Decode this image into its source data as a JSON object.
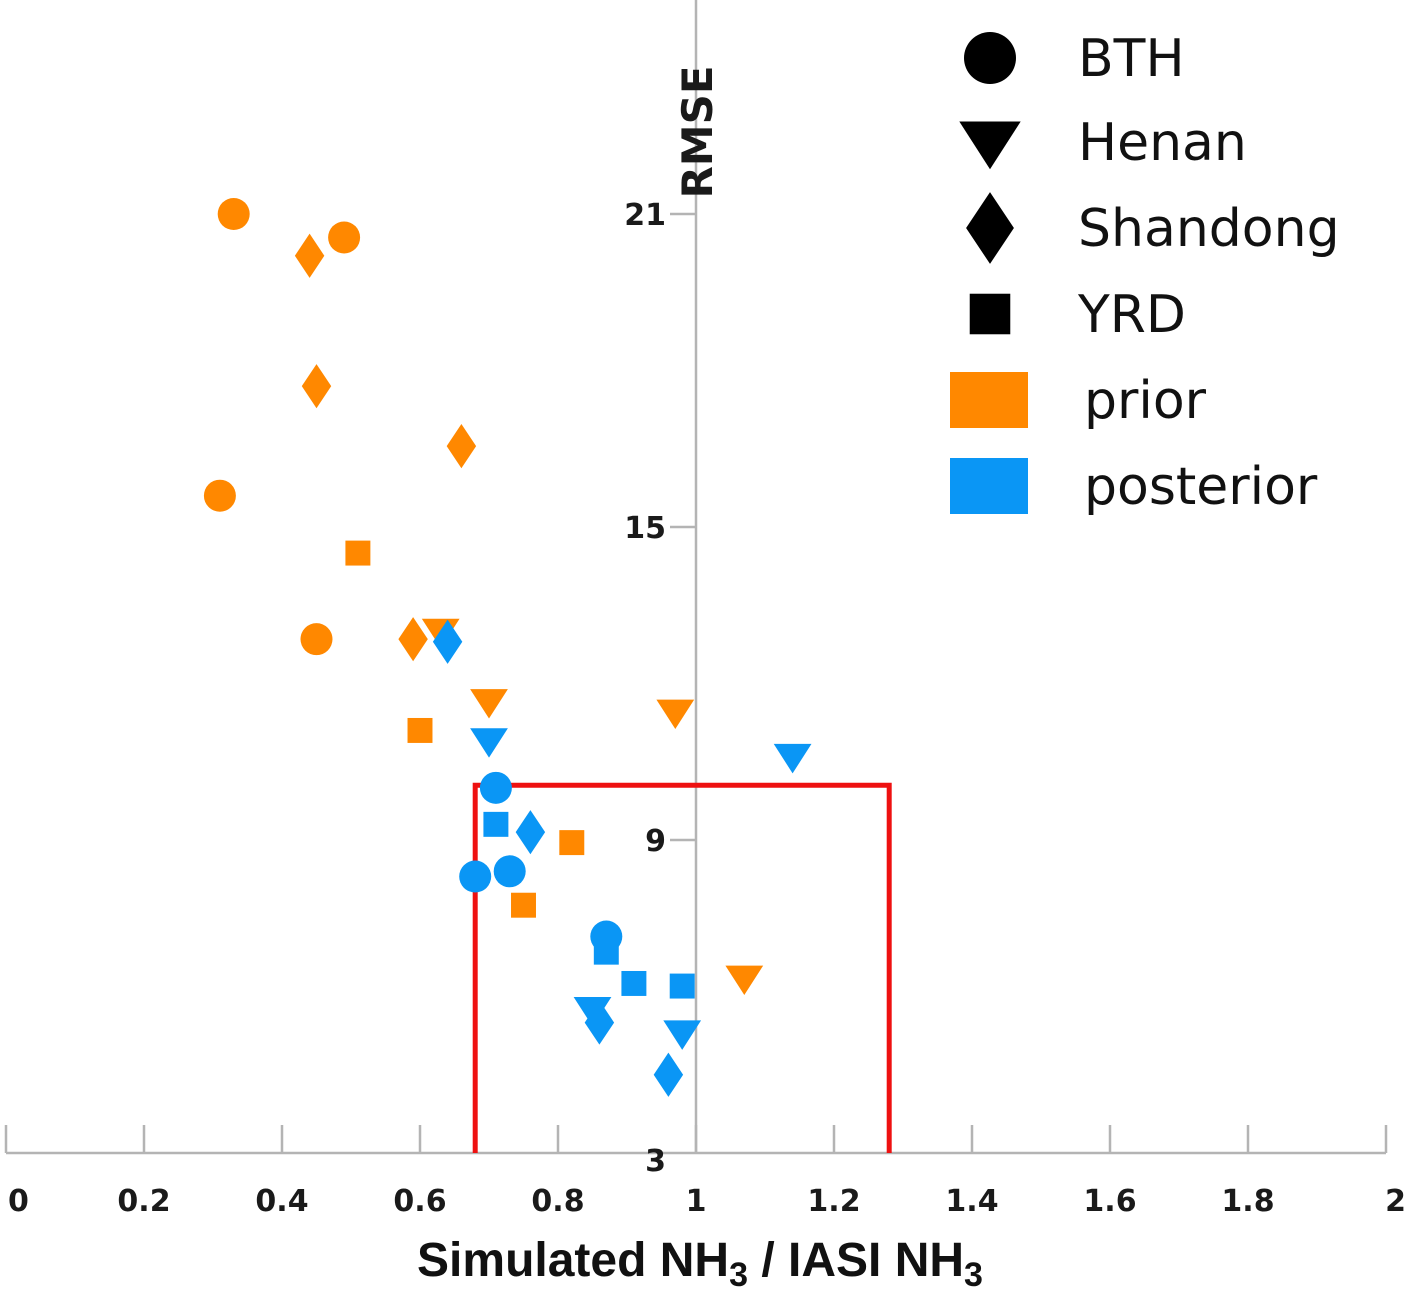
{
  "chart_data": {
    "type": "scatter",
    "xlabel_main": "Simulated NH",
    "xlabel_sub": "3",
    "xlabel_mid": " / IASI NH",
    "xlabel_sub2": "3",
    "ylabel": "RMSE",
    "xlim": [
      0,
      2
    ],
    "ylim": [
      3,
      21
    ],
    "x_ticks": [
      "0",
      "0.2",
      "0.4",
      "0.6",
      "0.8",
      "1",
      "1.2",
      "1.4",
      "1.6",
      "1.8",
      "2"
    ],
    "y_ticks": [
      "3",
      "9",
      "15",
      "21"
    ],
    "highlight_box": {
      "x": [
        0.68,
        1.28
      ],
      "y": [
        3,
        10.05
      ],
      "color": "#ee1111"
    },
    "colors": {
      "prior": "#ff8800",
      "posterior": "#0a96f5",
      "axis": "#b4b4b4"
    },
    "legend": {
      "position": "top-right",
      "shapes": [
        {
          "label": "BTH",
          "marker": "circle"
        },
        {
          "label": "Henan",
          "marker": "triangle-down"
        },
        {
          "label": "Shandong",
          "marker": "diamond"
        },
        {
          "label": "YRD",
          "marker": "square"
        }
      ],
      "groups": [
        {
          "label": "prior",
          "color": "#ff8800"
        },
        {
          "label": "posterior",
          "color": "#0a96f5"
        }
      ]
    },
    "series": [
      {
        "group": "prior",
        "region": "BTH",
        "marker": "circle",
        "points": [
          [
            0.33,
            21.0
          ],
          [
            0.49,
            20.55
          ],
          [
            0.31,
            15.6
          ],
          [
            0.45,
            12.85
          ]
        ]
      },
      {
        "group": "prior",
        "region": "Henan",
        "marker": "triangle-down",
        "points": [
          [
            0.63,
            13.0
          ],
          [
            0.7,
            11.65
          ],
          [
            0.97,
            11.45
          ],
          [
            1.07,
            6.35
          ]
        ]
      },
      {
        "group": "prior",
        "region": "Shandong",
        "marker": "diamond",
        "points": [
          [
            0.44,
            20.2
          ],
          [
            0.45,
            17.7
          ],
          [
            0.66,
            16.55
          ],
          [
            0.59,
            12.85
          ]
        ]
      },
      {
        "group": "prior",
        "region": "YRD",
        "marker": "square",
        "points": [
          [
            0.51,
            14.5
          ],
          [
            0.6,
            11.1
          ],
          [
            0.82,
            8.95
          ],
          [
            0.75,
            7.75
          ]
        ]
      },
      {
        "group": "posterior",
        "region": "BTH",
        "marker": "circle",
        "points": [
          [
            0.71,
            10.0
          ],
          [
            0.68,
            8.3
          ],
          [
            0.73,
            8.4
          ],
          [
            0.87,
            7.15
          ]
        ]
      },
      {
        "group": "posterior",
        "region": "Henan",
        "marker": "triangle-down",
        "points": [
          [
            0.7,
            10.9
          ],
          [
            1.14,
            10.6
          ],
          [
            0.85,
            5.75
          ],
          [
            0.98,
            5.3
          ]
        ]
      },
      {
        "group": "posterior",
        "region": "Shandong",
        "marker": "diamond",
        "points": [
          [
            0.64,
            12.8
          ],
          [
            0.76,
            9.15
          ],
          [
            0.86,
            5.5
          ],
          [
            0.96,
            4.5
          ]
        ]
      },
      {
        "group": "posterior",
        "region": "YRD",
        "marker": "square",
        "points": [
          [
            0.71,
            9.3
          ],
          [
            0.87,
            6.85
          ],
          [
            0.91,
            6.25
          ],
          [
            0.98,
            6.2
          ]
        ]
      }
    ]
  }
}
